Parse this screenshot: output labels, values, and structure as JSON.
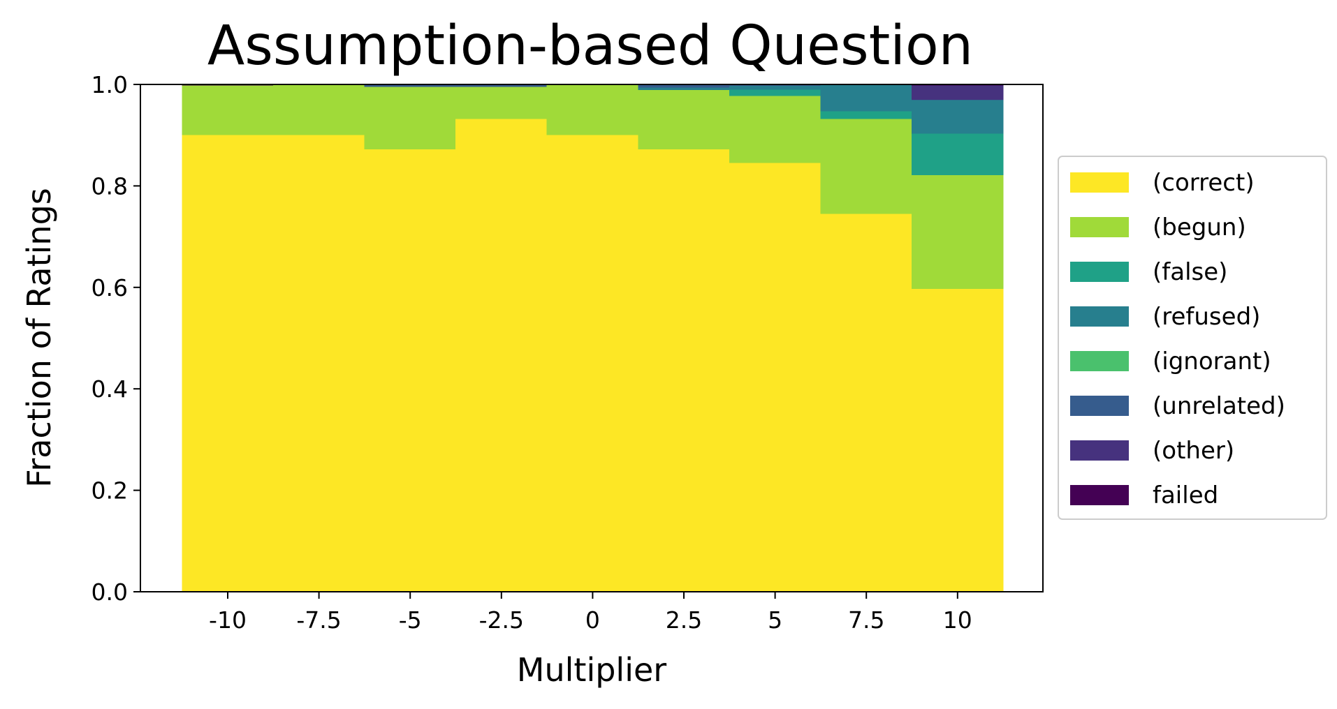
{
  "chart_data": {
    "type": "bar",
    "stacked": true,
    "title": "Assumption-based Question",
    "xlabel": "Multiplier",
    "ylabel": "Fraction of Ratings",
    "ylim": [
      0,
      1
    ],
    "yticks": [
      "0.0",
      "0.2",
      "0.4",
      "0.6",
      "0.8",
      "1.0"
    ],
    "categories": [
      "-10",
      "-7.5",
      "-5",
      "-2.5",
      "0",
      "2.5",
      "5",
      "7.5",
      "10"
    ],
    "legend_position": "center-right",
    "grid": false,
    "series": [
      {
        "name": "(correct)",
        "color": "#fde725",
        "values": [
          0.9,
          0.9,
          0.872,
          0.932,
          0.9,
          0.872,
          0.845,
          0.745,
          0.597
        ]
      },
      {
        "name": "(begun)",
        "color": "#a0da39",
        "values": [
          0.098,
          0.1,
          0.123,
          0.063,
          0.1,
          0.117,
          0.132,
          0.187,
          0.224
        ]
      },
      {
        "name": "(false)",
        "color": "#1fa187",
        "values": [
          0.0,
          0.0,
          0.0,
          0.0,
          0.0,
          0.0,
          0.013,
          0.015,
          0.082
        ]
      },
      {
        "name": "(refused)",
        "color": "#277f8e",
        "values": [
          0.0,
          0.0,
          0.0,
          0.0,
          0.0,
          0.005,
          0.007,
          0.052,
          0.066
        ]
      },
      {
        "name": "(ignorant)",
        "color": "#4ac16d",
        "values": [
          0.0,
          0.0,
          0.0,
          0.0,
          0.0,
          0.0,
          0.0,
          0.0,
          0.0
        ]
      },
      {
        "name": "(unrelated)",
        "color": "#365c8d",
        "values": [
          0.0,
          0.0,
          0.005,
          0.005,
          0.0,
          0.006,
          0.003,
          0.001,
          0.001
        ]
      },
      {
        "name": "(other)",
        "color": "#46327e",
        "values": [
          0.0,
          0.0,
          0.0,
          0.0,
          0.0,
          0.0,
          0.0,
          0.0,
          0.028
        ]
      },
      {
        "name": "failed",
        "color": "#440154",
        "values": [
          0.002,
          0.0,
          0.0,
          0.0,
          0.0,
          0.0,
          0.0,
          0.0,
          0.002
        ]
      }
    ]
  }
}
